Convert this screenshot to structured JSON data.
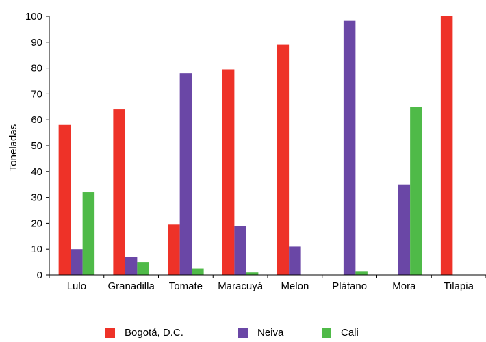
{
  "chart_data": {
    "type": "bar",
    "title": "",
    "xlabel": "",
    "ylabel": "Toneladas",
    "ylim": [
      0,
      100
    ],
    "yticks": [
      0,
      10,
      20,
      30,
      40,
      50,
      60,
      70,
      80,
      90,
      100
    ],
    "grid": false,
    "legend_position": "bottom",
    "categories": [
      "Lulo",
      "Granadilla",
      "Tomate",
      "Maracuyá",
      "Melon",
      "Plátano",
      "Mora",
      "Tilapia"
    ],
    "series": [
      {
        "name": "Bogotá, D.C.",
        "color": "#ee3228",
        "values": [
          58,
          64,
          19.5,
          79.5,
          89,
          0,
          0,
          100
        ]
      },
      {
        "name": "Neiva",
        "color": "#6a47a6",
        "values": [
          10,
          7,
          78,
          19,
          11,
          98.5,
          35,
          0
        ]
      },
      {
        "name": "Cali",
        "color": "#4fba48",
        "values": [
          32,
          5,
          2.5,
          1,
          0,
          1.5,
          65,
          0
        ]
      }
    ]
  }
}
